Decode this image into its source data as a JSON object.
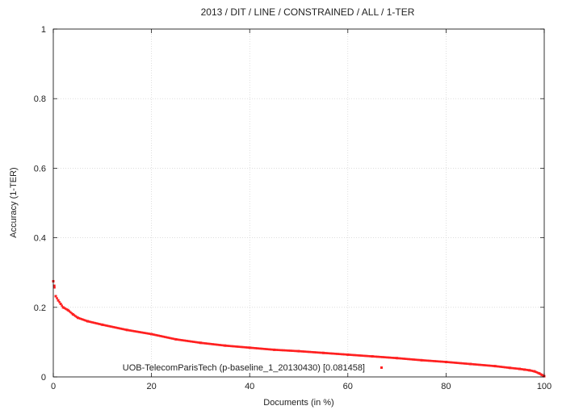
{
  "chart_data": {
    "type": "scatter",
    "title": "2013 / DIT / LINE / CONSTRAINED / ALL / 1-TER",
    "xlabel": "Documents (in %)",
    "ylabel": "Accuracy (1-TER)",
    "xlim": [
      0,
      100
    ],
    "ylim": [
      0,
      1
    ],
    "xticks": [
      0,
      20,
      40,
      60,
      80,
      100
    ],
    "xtick_labels": [
      "0",
      "20",
      "40",
      "60",
      "80",
      "100"
    ],
    "yticks": [
      0,
      0.2,
      0.4,
      0.6,
      0.8,
      1
    ],
    "ytick_labels": [
      "0",
      "0.2",
      "0.4",
      "0.6",
      "0.8",
      "1"
    ],
    "grid": true,
    "legend_position": "bottom-right",
    "series": [
      {
        "name": "UOB-TelecomParisTech (p-baseline_1_20130430) [0.081458]",
        "color": "#ff2020",
        "marker": "small-square",
        "x": [
          0,
          0.2,
          0.5,
          1,
          1.5,
          2,
          3,
          4,
          5,
          7,
          10,
          15,
          20,
          25,
          30,
          35,
          40,
          45,
          50,
          55,
          60,
          65,
          70,
          75,
          80,
          85,
          90,
          93,
          95,
          96,
          97,
          98,
          99,
          99.5,
          100
        ],
        "y": [
          0.275,
          0.262,
          0.232,
          0.22,
          0.21,
          0.2,
          0.192,
          0.18,
          0.17,
          0.16,
          0.15,
          0.135,
          0.123,
          0.108,
          0.098,
          0.09,
          0.084,
          0.078,
          0.074,
          0.069,
          0.064,
          0.059,
          0.054,
          0.048,
          0.043,
          0.037,
          0.031,
          0.026,
          0.023,
          0.021,
          0.019,
          0.016,
          0.01,
          0.006,
          0.002
        ]
      }
    ]
  }
}
